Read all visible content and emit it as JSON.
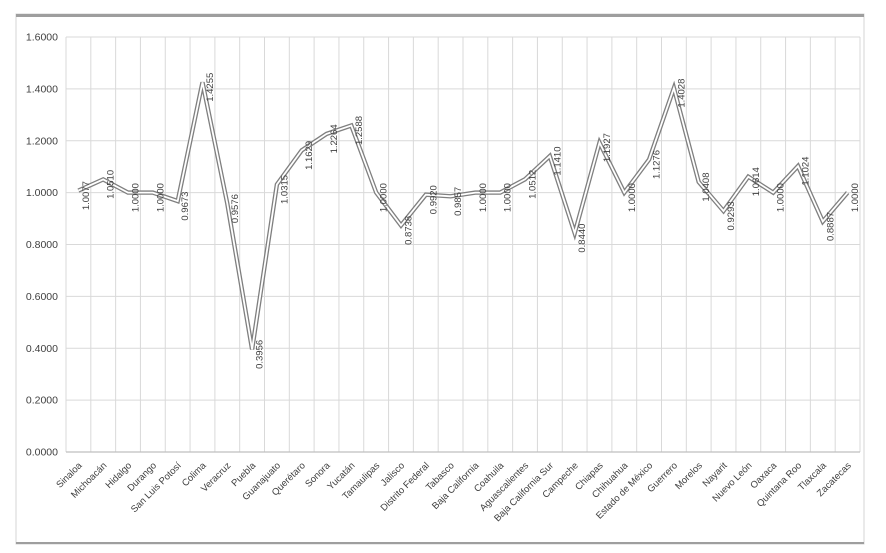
{
  "chart_data": {
    "type": "line",
    "title": "",
    "xlabel": "",
    "ylabel": "",
    "legend": "none",
    "grid": true,
    "ylim": [
      0.0,
      1.6
    ],
    "y_tick_step": 0.2,
    "y_ticks": [
      "0.0000",
      "0.2000",
      "0.4000",
      "0.6000",
      "0.8000",
      "1.0000",
      "1.2000",
      "1.4000",
      "1.6000"
    ],
    "categories": [
      "Sinaloa",
      "Michoacán",
      "Hidalgo",
      "Durango",
      "San Luis Potosí",
      "Colima",
      "Veracruz",
      "Puebla",
      "Guanajuato",
      "Querétaro",
      "Sonora",
      "Yucatán",
      "Tamaulipas",
      "Jalisco",
      "Distrito Federal",
      "Tabasco",
      "Baja California",
      "Coahuila",
      "Aguascalientes",
      "Baja California Sur",
      "Campeche",
      "Chiapas",
      "Chihuahua",
      "Estado de México",
      "Guerrero",
      "Morelos",
      "Nayarit",
      "Nuevo León",
      "Oaxaca",
      "Quintana Roo",
      "Tlaxcala",
      "Zacatecas"
    ],
    "values": [
      1.0077,
      1.051,
      1.0,
      1.0,
      0.9673,
      1.4255,
      0.9576,
      0.3956,
      1.0315,
      1.1629,
      1.2264,
      1.2588,
      1.0,
      0.8738,
      0.992,
      0.9857,
      1.0,
      1.0,
      1.0512,
      1.141,
      0.844,
      1.1927,
      1.0,
      1.1276,
      1.4028,
      1.0408,
      0.9293,
      1.0614,
      1.0,
      1.1024,
      0.8887,
      1.0
    ],
    "data_labels": [
      "1.0077",
      "1.0510",
      "1.0000",
      "1.0000",
      "0.9673",
      "1.4255",
      "0.9576",
      "0.3956",
      "1.0315",
      "1.1629",
      "1.2264",
      "1.2588",
      "1.0000",
      "0.8738",
      "0.9920",
      "0.9857",
      "1.0000",
      "1.0000",
      "1.0512",
      "1.1410",
      "0.8440",
      "1.1927",
      "1.0000",
      "1.1276",
      "1.4028",
      "1.0408",
      "0.9293",
      "1.0614",
      "1.0000",
      "1.1024",
      "0.8887",
      "1.0000"
    ],
    "colors": {
      "line": "#7f7f7f",
      "line_inner": "#ffffff",
      "grid": "#d9d9d9",
      "axis": "#bfbfbf",
      "tick_text": "#404040",
      "label_text": "#3f3f3f",
      "frame_border": "#d6d6d6",
      "frame_rule": "#9e9e9e",
      "background": "#ffffff"
    }
  }
}
